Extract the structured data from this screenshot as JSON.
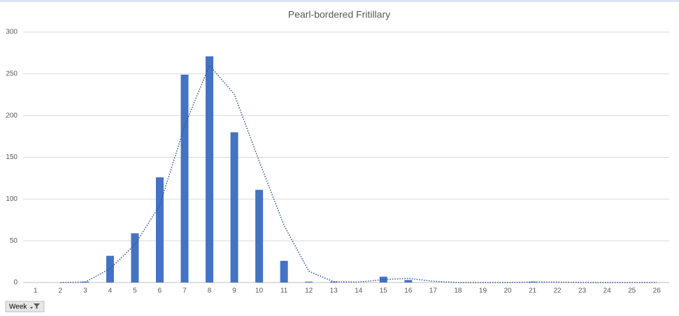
{
  "chart_data": {
    "type": "bar",
    "title": "Pearl-bordered Fritillary",
    "categories": [
      "1",
      "2",
      "3",
      "4",
      "5",
      "6",
      "7",
      "8",
      "9",
      "10",
      "11",
      "12",
      "13",
      "14",
      "15",
      "16",
      "17",
      "18",
      "19",
      "20",
      "21",
      "22",
      "23",
      "24",
      "25",
      "26"
    ],
    "values": [
      0,
      0,
      1,
      32,
      59,
      126,
      249,
      271,
      180,
      111,
      26,
      1,
      1,
      0,
      7,
      3,
      0,
      0,
      0,
      0,
      1,
      0,
      0,
      0,
      0,
      0
    ],
    "color": "#4472c4",
    "trendline": {
      "color": "#2f5597",
      "style": "dotted",
      "values": [
        null,
        0,
        0.5,
        16.5,
        45.5,
        92.5,
        187.5,
        260,
        225.5,
        145.5,
        68.5,
        13.5,
        1,
        0.5,
        3.5,
        5,
        1.5,
        0,
        0,
        0,
        0.5,
        0.5,
        0,
        0,
        0,
        0
      ]
    },
    "ylim": [
      0,
      300
    ],
    "yticks": [
      0,
      50,
      100,
      150,
      200,
      250,
      300
    ],
    "grid": true,
    "filter_button": "Week"
  }
}
